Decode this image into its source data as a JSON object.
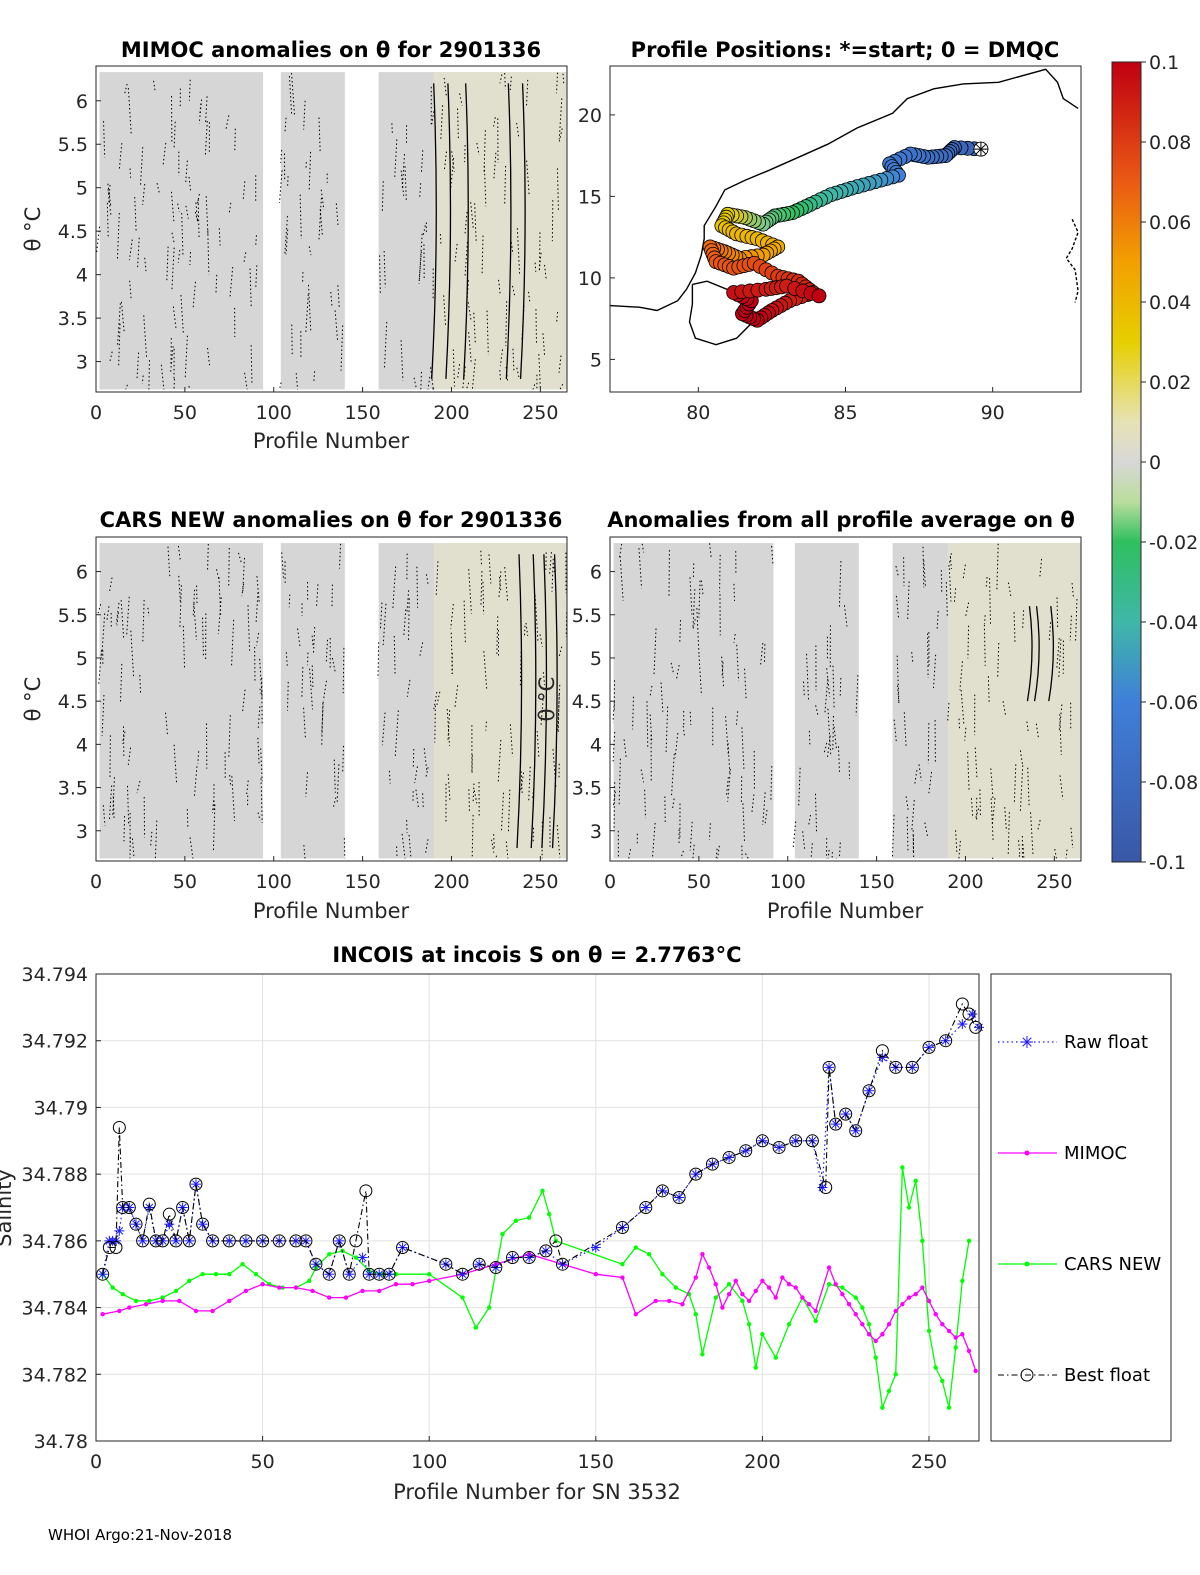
{
  "footer": "WHOI Argo:21-Nov-2018",
  "colors": {
    "anomaly_fill": "#d6d6d6",
    "positive_tint": "#e3e1cc",
    "raw": "#1a1aff",
    "mimoc": "#ff00ff",
    "cars": "#00ff00",
    "best": "#000000",
    "coast": "#000000"
  },
  "chart_data": [
    {
      "id": "mimoc",
      "type": "heatmap",
      "title": "MIMOC anomalies on θ  for 2901336",
      "xlabel": "Profile Number",
      "ylabel": "θ °C",
      "xlim": [
        0,
        265
      ],
      "ylim": [
        2.65,
        6.4
      ],
      "xticks": [
        0,
        50,
        100,
        150,
        200,
        250
      ],
      "yticks": [
        3,
        3.5,
        4,
        4.5,
        5,
        5.5,
        6
      ],
      "data_segments": [
        [
          2,
          94
        ],
        [
          104,
          140
        ],
        [
          159,
          265
        ]
      ],
      "note": "anomalies near 0 (grey) with faint positive tint after profile 190"
    },
    {
      "id": "positions",
      "type": "scatter",
      "title": "Profile Positions: *=start; 0 = DMQC",
      "xlim": [
        77,
        93
      ],
      "ylim": [
        3,
        23
      ],
      "xticks": [
        80,
        85,
        90
      ],
      "yticks": [
        5,
        10,
        15,
        20
      ],
      "track": [
        [
          89.6,
          17.9
        ],
        [
          88.7,
          18.0
        ],
        [
          88.4,
          17.5
        ],
        [
          87.8,
          17.4
        ],
        [
          87.2,
          17.6
        ],
        [
          86.5,
          17.0
        ],
        [
          86.8,
          16.3
        ],
        [
          86.0,
          15.9
        ],
        [
          85.2,
          15.5
        ],
        [
          84.5,
          15.1
        ],
        [
          83.8,
          14.5
        ],
        [
          83.2,
          14.0
        ],
        [
          82.6,
          13.8
        ],
        [
          82.2,
          13.3
        ],
        [
          81.6,
          13.7
        ],
        [
          81.0,
          13.9
        ],
        [
          80.8,
          13.2
        ],
        [
          81.3,
          12.7
        ],
        [
          82.0,
          12.4
        ],
        [
          82.7,
          11.9
        ],
        [
          82.2,
          11.4
        ],
        [
          81.4,
          11.2
        ],
        [
          80.9,
          11.6
        ],
        [
          80.4,
          11.9
        ],
        [
          80.6,
          11.0
        ],
        [
          81.2,
          10.6
        ],
        [
          81.9,
          10.9
        ],
        [
          82.7,
          10.1
        ],
        [
          83.4,
          9.8
        ],
        [
          83.9,
          9.1
        ],
        [
          83.1,
          8.6
        ],
        [
          82.5,
          8.0
        ],
        [
          82.0,
          7.4
        ],
        [
          81.5,
          7.8
        ],
        [
          81.8,
          8.6
        ],
        [
          81.2,
          9.1
        ],
        [
          82.3,
          9.3
        ],
        [
          83.0,
          9.5
        ],
        [
          84.1,
          8.9
        ]
      ],
      "track_color_values": [
        -0.085,
        -0.085,
        -0.08,
        -0.075,
        -0.07,
        -0.065,
        -0.06,
        -0.05,
        -0.045,
        -0.04,
        -0.03,
        -0.02,
        -0.01,
        0.0,
        0.01,
        0.03,
        0.035,
        0.04,
        0.04,
        0.045,
        0.05,
        0.055,
        0.06,
        0.065,
        0.07,
        0.072,
        0.074,
        0.08,
        0.085,
        0.09,
        0.09,
        0.095,
        0.1,
        0.1,
        0.1,
        0.095,
        0.09,
        0.09,
        0.1
      ],
      "coast_west": [
        [
          77,
          8.3
        ],
        [
          78,
          8.2
        ],
        [
          78.6,
          8.0
        ],
        [
          79.3,
          8.6
        ],
        [
          79.6,
          9.3
        ],
        [
          79.9,
          10.3
        ],
        [
          80.1,
          11.4
        ],
        [
          80.2,
          12.4
        ],
        [
          80.2,
          13.2
        ],
        [
          80.6,
          14.4
        ],
        [
          80.9,
          15.4
        ],
        [
          81.6,
          16.0
        ],
        [
          82.4,
          16.6
        ],
        [
          83.4,
          17.4
        ],
        [
          84.4,
          18.2
        ],
        [
          85.4,
          19.2
        ],
        [
          86.6,
          20.1
        ],
        [
          87.1,
          21.0
        ],
        [
          88.0,
          21.6
        ],
        [
          89.0,
          21.9
        ],
        [
          90.2,
          22.0
        ],
        [
          91.0,
          22.4
        ],
        [
          91.8,
          22.8
        ],
        [
          92.2,
          22.0
        ],
        [
          92.4,
          21.0
        ],
        [
          92.9,
          20.4
        ]
      ],
      "coast_srilanka": [
        [
          79.8,
          9.6
        ],
        [
          80.3,
          9.8
        ],
        [
          81.1,
          9.2
        ],
        [
          81.7,
          8.2
        ],
        [
          81.8,
          7.2
        ],
        [
          81.3,
          6.3
        ],
        [
          80.6,
          5.9
        ],
        [
          79.9,
          6.3
        ],
        [
          79.7,
          7.3
        ],
        [
          79.8,
          8.4
        ],
        [
          79.8,
          9.6
        ]
      ],
      "coast_andaman": [
        [
          92.7,
          13.6
        ],
        [
          92.9,
          12.8
        ],
        [
          92.7,
          11.8
        ],
        [
          92.5,
          11.2
        ],
        [
          92.8,
          10.5
        ],
        [
          92.9,
          9.2
        ],
        [
          92.8,
          8.5
        ]
      ]
    },
    {
      "id": "colorbar",
      "type": "heatmap",
      "ticks": [
        "0.1",
        "0.08",
        "0.06",
        "0.04",
        "0.02",
        "0",
        "-0.02",
        "-0.04",
        "-0.06",
        "-0.08",
        "-0.1"
      ],
      "range": [
        -0.1,
        0.1
      ]
    },
    {
      "id": "cars",
      "type": "heatmap",
      "title": "CARS NEW anomalies on θ for 2901336",
      "xlabel": "Profile Number",
      "ylabel": "θ °C",
      "xlim": [
        0,
        265
      ],
      "ylim": [
        2.65,
        6.4
      ],
      "xticks": [
        0,
        50,
        100,
        150,
        200,
        250
      ],
      "yticks": [
        3,
        3.5,
        4,
        4.5,
        5,
        5.5,
        6
      ],
      "data_segments": [
        [
          2,
          94
        ],
        [
          104,
          140
        ],
        [
          159,
          265
        ]
      ]
    },
    {
      "id": "avg",
      "type": "heatmap",
      "title": "Anomalies from all profile average on θ",
      "xlabel": "Profile Number",
      "ylabel": "θ °C",
      "xlim": [
        0,
        265
      ],
      "ylim": [
        2.65,
        6.4
      ],
      "xticks": [
        0,
        50,
        100,
        150,
        200,
        250
      ],
      "yticks": [
        3,
        3.5,
        4,
        4.5,
        5,
        5.5,
        6
      ],
      "data_segments": [
        [
          2,
          92
        ],
        [
          104,
          140
        ],
        [
          159,
          265
        ]
      ]
    },
    {
      "id": "incois",
      "type": "line",
      "title_prefix": "INCOIS at incois S on θ = 2.7763",
      "title_unit": "°C",
      "xlabel": "Profile Number for SN 3532",
      "ylabel": "Salinity",
      "xlim": [
        0,
        265
      ],
      "ylim": [
        34.78,
        34.794
      ],
      "xticks": [
        0,
        50,
        100,
        150,
        200,
        250
      ],
      "yticks": [
        "34.78",
        "34.782",
        "34.784",
        "34.786",
        "34.788",
        "34.79",
        "34.792",
        "34.794"
      ],
      "legend": [
        "Raw float",
        "MIMOC",
        "CARS NEW",
        "Best float"
      ],
      "series": [
        {
          "name": "Raw float",
          "x": [
            2,
            4,
            5,
            6,
            7,
            8,
            10,
            12,
            14,
            16,
            18,
            20,
            22,
            24,
            26,
            28,
            30,
            32,
            35,
            40,
            45,
            50,
            55,
            60,
            63,
            66,
            70,
            73,
            76,
            80,
            82,
            85,
            88,
            92,
            105,
            110,
            115,
            120,
            125,
            130,
            135,
            140,
            150,
            158,
            165,
            170,
            175,
            180,
            185,
            190,
            195,
            200,
            205,
            210,
            215,
            218,
            220,
            222,
            225,
            228,
            232,
            236,
            240,
            245,
            250,
            255,
            260,
            263,
            265
          ],
          "y": [
            34.785,
            34.786,
            34.786,
            34.786,
            34.7863,
            34.787,
            34.787,
            34.7865,
            34.786,
            34.787,
            34.786,
            34.786,
            34.7865,
            34.786,
            34.787,
            34.786,
            34.7877,
            34.7865,
            34.786,
            34.786,
            34.786,
            34.786,
            34.786,
            34.786,
            34.786,
            34.7853,
            34.785,
            34.786,
            34.785,
            34.7855,
            34.785,
            34.785,
            34.785,
            34.7858,
            34.7853,
            34.785,
            34.7853,
            34.7852,
            34.7855,
            34.7855,
            34.7857,
            34.7853,
            34.7858,
            34.7864,
            34.787,
            34.7875,
            34.7873,
            34.788,
            34.7883,
            34.7885,
            34.7887,
            34.789,
            34.7888,
            34.789,
            34.789,
            34.7876,
            34.7912,
            34.7895,
            34.7898,
            34.7893,
            34.7905,
            34.7915,
            34.7912,
            34.7912,
            34.7918,
            34.792,
            34.7925,
            34.7928,
            34.7924
          ]
        },
        {
          "name": "MIMOC",
          "x": [
            2,
            7,
            10,
            15,
            20,
            25,
            30,
            35,
            40,
            45,
            50,
            55,
            60,
            65,
            70,
            75,
            80,
            85,
            90,
            95,
            100,
            110,
            120,
            130,
            140,
            150,
            158,
            162,
            168,
            172,
            176,
            180,
            182,
            184,
            186,
            188,
            190,
            192,
            194,
            196,
            198,
            200,
            202,
            204,
            206,
            208,
            210,
            212,
            214,
            216,
            220,
            222,
            224,
            226,
            228,
            230,
            232,
            234,
            236,
            238,
            240,
            242,
            244,
            246,
            248,
            250,
            252,
            254,
            256,
            258,
            260,
            262,
            264
          ],
          "y": [
            34.7838,
            34.7839,
            34.784,
            34.7841,
            34.7842,
            34.7842,
            34.7839,
            34.7839,
            34.7842,
            34.7845,
            34.7847,
            34.7846,
            34.7846,
            34.7845,
            34.7843,
            34.7843,
            34.7845,
            34.7845,
            34.7847,
            34.7847,
            34.7848,
            34.785,
            34.7853,
            34.7856,
            34.7853,
            34.785,
            34.7849,
            34.7838,
            34.7842,
            34.7842,
            34.7841,
            34.7849,
            34.7856,
            34.7852,
            34.7847,
            34.784,
            34.7844,
            34.7848,
            34.7844,
            34.7842,
            34.7845,
            34.7848,
            34.7846,
            34.7843,
            34.7849,
            34.7847,
            34.7846,
            34.7843,
            34.7841,
            34.7839,
            34.7852,
            34.7847,
            34.7844,
            34.7841,
            34.7838,
            34.7835,
            34.7832,
            34.783,
            34.7832,
            34.7835,
            34.7839,
            34.7841,
            34.7843,
            34.7844,
            34.7846,
            34.7842,
            34.7838,
            34.7835,
            34.7833,
            34.7831,
            34.7832,
            34.7827,
            34.7821
          ]
        },
        {
          "name": "CARS NEW",
          "x": [
            2,
            5,
            8,
            12,
            16,
            20,
            24,
            28,
            32,
            36,
            40,
            44,
            48,
            52,
            56,
            60,
            64,
            66,
            70,
            74,
            78,
            82,
            86,
            90,
            100,
            110,
            114,
            118,
            122,
            126,
            130,
            134,
            136,
            138,
            158,
            162,
            166,
            170,
            174,
            178,
            180,
            182,
            186,
            190,
            194,
            196,
            198,
            200,
            204,
            208,
            212,
            216,
            220,
            224,
            228,
            230,
            232,
            234,
            236,
            238,
            240,
            242,
            244,
            246,
            248,
            250,
            252,
            254,
            256,
            258,
            260,
            262
          ],
          "y": [
            34.785,
            34.7846,
            34.7844,
            34.7842,
            34.7842,
            34.7843,
            34.7845,
            34.7848,
            34.785,
            34.785,
            34.785,
            34.7853,
            34.785,
            34.7847,
            34.7846,
            34.7846,
            34.7848,
            34.7852,
            34.7856,
            34.7857,
            34.7855,
            34.7851,
            34.785,
            34.785,
            34.785,
            34.7843,
            34.7834,
            34.784,
            34.7862,
            34.7866,
            34.7867,
            34.7875,
            34.7868,
            34.786,
            34.7853,
            34.7858,
            34.7856,
            34.785,
            34.7846,
            34.7844,
            34.7838,
            34.7826,
            34.7843,
            34.7847,
            34.7842,
            34.7835,
            34.7822,
            34.7832,
            34.7825,
            34.7835,
            34.7843,
            34.7836,
            34.7847,
            34.7846,
            34.7843,
            34.784,
            34.7835,
            34.7825,
            34.781,
            34.7815,
            34.782,
            34.7882,
            34.787,
            34.7878,
            34.786,
            34.7833,
            34.7822,
            34.7818,
            34.781,
            34.7828,
            34.7848,
            34.786
          ]
        },
        {
          "name": "Best float",
          "x": [
            2,
            4,
            6,
            7,
            8,
            10,
            12,
            14,
            16,
            18,
            20,
            22,
            24,
            26,
            28,
            30,
            32,
            35,
            40,
            45,
            50,
            55,
            60,
            63,
            66,
            70,
            73,
            76,
            78,
            81,
            82,
            85,
            88,
            92,
            105,
            110,
            115,
            120,
            125,
            130,
            135,
            138,
            140,
            158,
            165,
            170,
            175,
            180,
            185,
            190,
            195,
            200,
            205,
            210,
            215,
            219,
            220,
            222,
            225,
            228,
            232,
            236,
            240,
            245,
            250,
            255,
            260,
            262,
            264
          ],
          "y": [
            34.785,
            34.7858,
            34.7858,
            34.7894,
            34.787,
            34.787,
            34.7865,
            34.786,
            34.7871,
            34.786,
            34.786,
            34.7868,
            34.786,
            34.787,
            34.786,
            34.7877,
            34.7865,
            34.786,
            34.786,
            34.786,
            34.786,
            34.786,
            34.786,
            34.786,
            34.7853,
            34.785,
            34.786,
            34.785,
            34.786,
            34.7875,
            34.785,
            34.785,
            34.785,
            34.7858,
            34.7853,
            34.785,
            34.7853,
            34.7852,
            34.7855,
            34.7855,
            34.7857,
            34.786,
            34.7853,
            34.7864,
            34.787,
            34.7875,
            34.7873,
            34.788,
            34.7883,
            34.7885,
            34.7887,
            34.789,
            34.7888,
            34.789,
            34.789,
            34.7876,
            34.7912,
            34.7895,
            34.7898,
            34.7893,
            34.7905,
            34.7917,
            34.7912,
            34.7912,
            34.7918,
            34.792,
            34.7931,
            34.7928,
            34.7924
          ]
        }
      ]
    }
  ]
}
